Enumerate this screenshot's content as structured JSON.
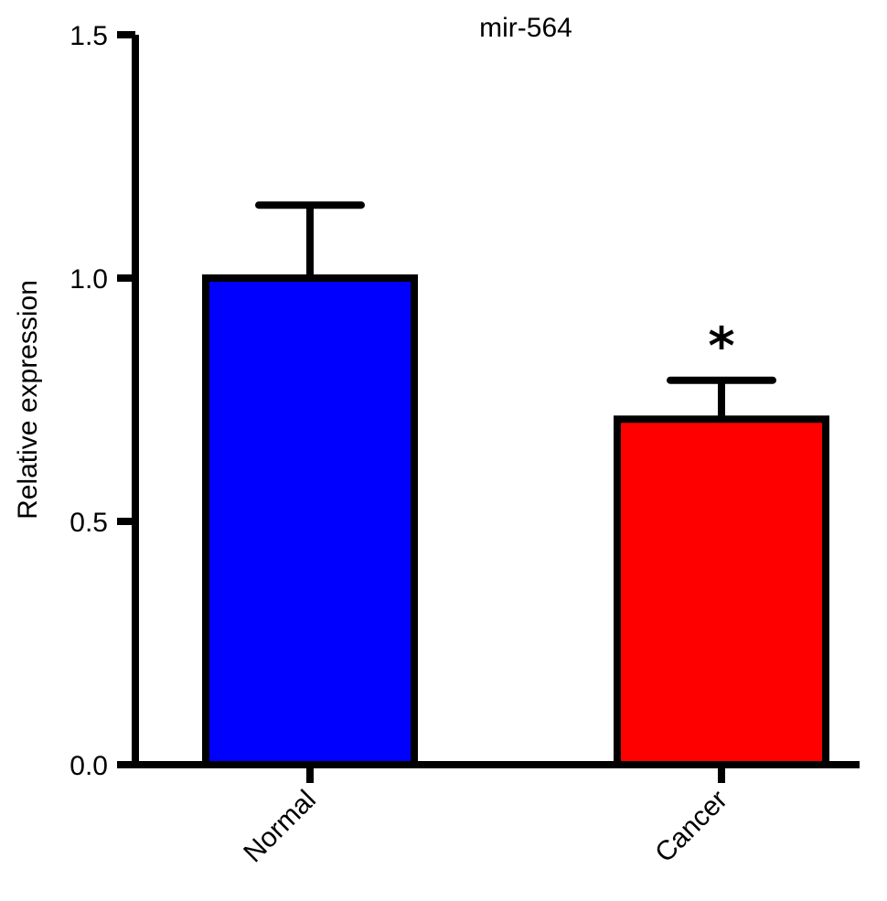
{
  "chart_data": {
    "type": "bar",
    "title": "mir-564",
    "xlabel": "",
    "ylabel": "Relative expression",
    "ylim": [
      0,
      1.5
    ],
    "yticks": [
      "0.0",
      "0.5",
      "1.0",
      "1.5"
    ],
    "categories": [
      "Normal",
      "Cancer"
    ],
    "values": [
      1.0,
      0.71
    ],
    "errors": [
      0.15,
      0.08
    ],
    "colors": [
      "#0000ff",
      "#ff0000"
    ],
    "annotations": [
      "",
      "*"
    ],
    "grid": false,
    "legend": "none"
  }
}
